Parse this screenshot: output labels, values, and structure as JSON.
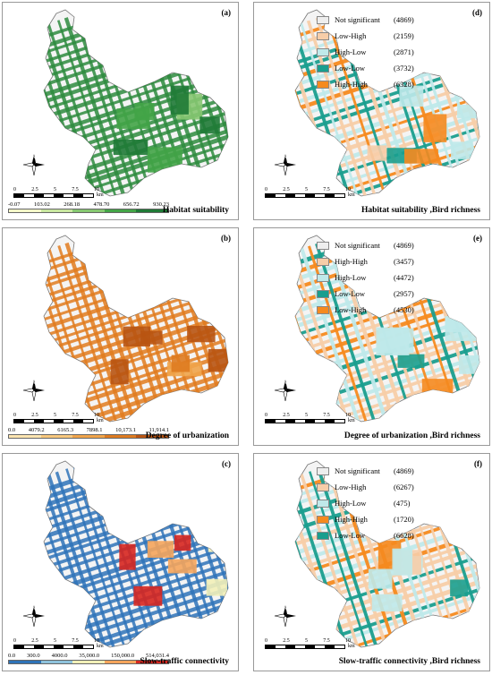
{
  "panels": [
    {
      "id": "a",
      "label": "(a)",
      "title": "Habitat suitability",
      "map_color": "#2e8b3e",
      "type": "gradient",
      "colorbar": {
        "ticks": [
          "-0.07",
          "103.02",
          "268.18",
          "478.70",
          "656.72",
          "930.23"
        ],
        "colors": [
          "#f4f7c9",
          "#c8e6a0",
          "#86c771",
          "#43a447",
          "#1f7a36"
        ]
      }
    },
    {
      "id": "b",
      "label": "(b)",
      "title": "Degree of urbanization",
      "map_color": "#e07b1e",
      "type": "gradient",
      "colorbar": {
        "ticks": [
          "0.0",
          "4079.2",
          "6165.3",
          "7898.1",
          "10,173.1",
          "11,914.1"
        ],
        "colors": [
          "#fde5b0",
          "#f8c87d",
          "#f0a44a",
          "#de7b20",
          "#b85412"
        ]
      }
    },
    {
      "id": "c",
      "label": "(c)",
      "title": "Slow-traffic connectivity",
      "map_color": "#2f73b8",
      "type": "gradient",
      "colorbar": {
        "ticks": [
          "0.0",
          "300.0",
          "4000.0",
          "35,000.0",
          "150,000.0",
          "514,031.4"
        ],
        "colors": [
          "#2f73b8",
          "#8fc3dc",
          "#f2f0b8",
          "#f5a55c",
          "#d7261f"
        ]
      }
    },
    {
      "id": "d",
      "label": "(d)",
      "title": "Habitat suitability ,Bird richness",
      "type": "lisa",
      "legend": [
        {
          "name": "Not significant",
          "count": "(4869)",
          "color": "#eeeeee"
        },
        {
          "name": "Low-High",
          "count": "(2159)",
          "color": "#f7cda8"
        },
        {
          "name": "High-Low",
          "count": "(2871)",
          "color": "#bfe9ea"
        },
        {
          "name": "Low-Low",
          "count": "(3732)",
          "color": "#1a9e8e"
        },
        {
          "name": "High-High",
          "count": "(6328)",
          "color": "#f58a1f"
        }
      ]
    },
    {
      "id": "e",
      "label": "(e)",
      "title": "Degree of urbanization ,Bird richness",
      "type": "lisa",
      "legend": [
        {
          "name": "Not significant",
          "count": "(4869)",
          "color": "#eeeeee"
        },
        {
          "name": "High-High",
          "count": "(3457)",
          "color": "#f7cda8"
        },
        {
          "name": "High-Low",
          "count": "(4472)",
          "color": "#bfe9ea"
        },
        {
          "name": "Low-Low",
          "count": "(2957)",
          "color": "#1a9e8e"
        },
        {
          "name": "Low-High",
          "count": "(4530)",
          "color": "#f58a1f"
        }
      ]
    },
    {
      "id": "f",
      "label": "(f)",
      "title": "Slow-traffic connectivity ,Bird richness",
      "type": "lisa",
      "legend": [
        {
          "name": "Not significant",
          "count": "(4869)",
          "color": "#eeeeee"
        },
        {
          "name": "Low-High",
          "count": "(6267)",
          "color": "#f7cda8"
        },
        {
          "name": "High-Low",
          "count": "(475)",
          "color": "#bfe9ea"
        },
        {
          "name": "High-High",
          "count": "(1720)",
          "color": "#f58a1f"
        },
        {
          "name": "Low-Low",
          "count": "(6628)",
          "color": "#1a9e8e"
        }
      ]
    }
  ],
  "scale_bar": {
    "labels": [
      "0",
      "2.5",
      "5",
      "7.5",
      "10"
    ],
    "unit": "km"
  },
  "north_arrow": {
    "n": "N",
    "s": "S",
    "e": "E",
    "w": "W"
  }
}
